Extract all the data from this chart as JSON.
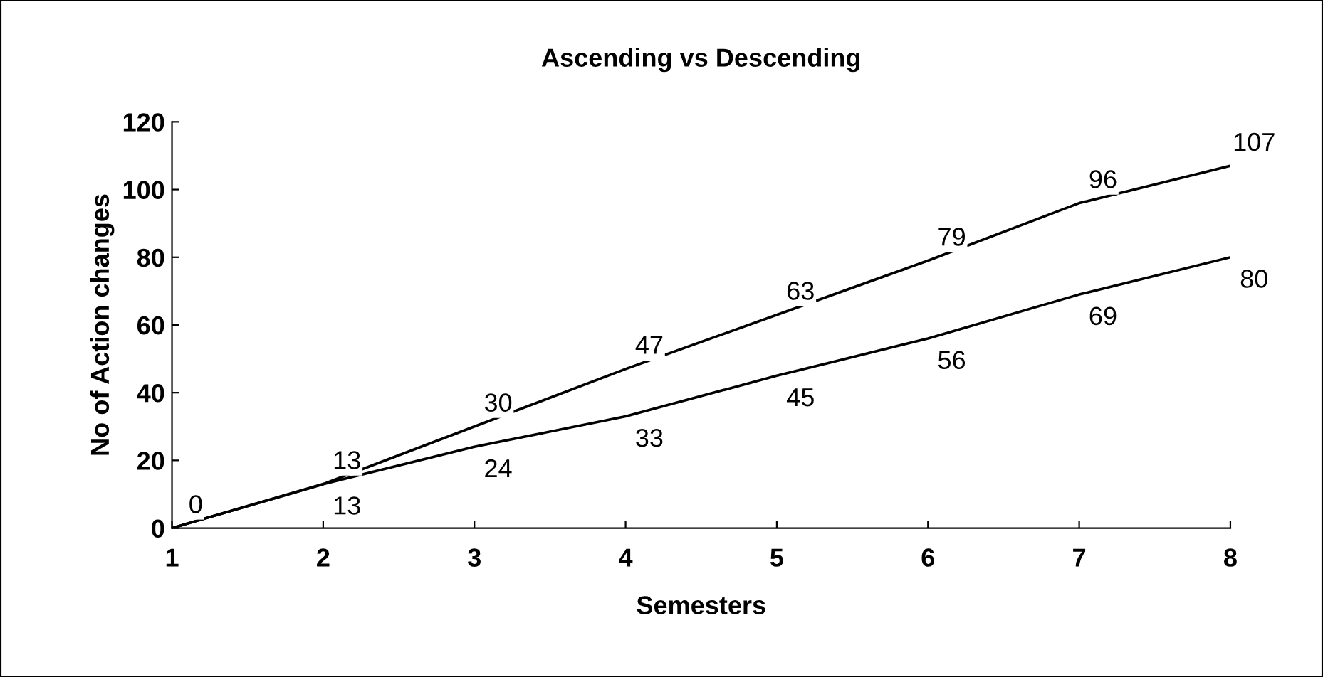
{
  "chart_data": {
    "type": "line",
    "title": "Ascending vs Descending",
    "xlabel": "Semesters",
    "ylabel": "No of Action changes",
    "x": [
      1,
      2,
      3,
      4,
      5,
      6,
      7,
      8
    ],
    "series": [
      {
        "color": "#000000",
        "values": [
          0,
          13,
          30,
          47,
          63,
          79,
          96,
          107
        ],
        "value_labels": [
          "0",
          "13",
          "30",
          "47",
          "63",
          "79",
          "96",
          "107"
        ]
      },
      {
        "color": "#000000",
        "values": [
          0,
          13,
          24,
          33,
          45,
          56,
          69,
          80
        ],
        "value_labels": [
          null,
          "13",
          "24",
          "33",
          "45",
          "56",
          "69",
          "80"
        ]
      }
    ],
    "xlim": [
      1,
      8
    ],
    "xticks": [
      1,
      2,
      3,
      4,
      5,
      6,
      7,
      8
    ],
    "ylim": [
      0,
      120
    ],
    "yticks": [
      0,
      20,
      40,
      60,
      80,
      100,
      120
    ],
    "grid": false,
    "legend": false,
    "marker": "none",
    "line_style": "solid"
  }
}
